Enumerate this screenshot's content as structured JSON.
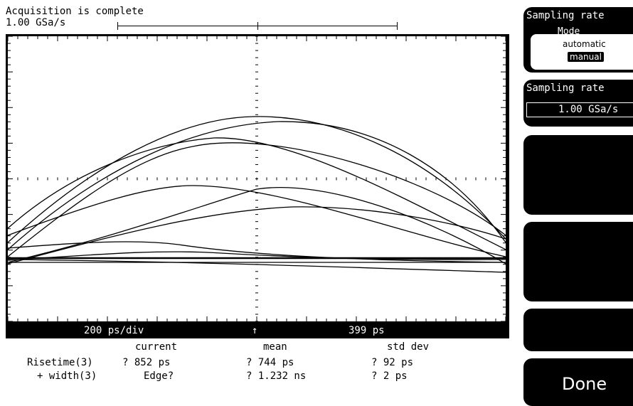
{
  "header": {
    "status": "Acquisition is complete",
    "sample_rate": "1.00 GSa/s"
  },
  "display": {
    "timebase": "200 ps/div",
    "trigger_marker": "↑",
    "delay": "399 ps"
  },
  "measurements": {
    "headers": [
      "current",
      "mean",
      "std dev"
    ],
    "rows": [
      {
        "label": "Risetime(3)",
        "current": "? 852 ps",
        "mean": "? 744 ps",
        "std_dev": "? 92 ps"
      },
      {
        "label": "+ width(3)",
        "current": "Edge?",
        "mean": "? 1.232 ns",
        "std_dev": "? 2 ps"
      }
    ]
  },
  "softkeys": {
    "sampling_rate_title": "Sampling rate",
    "mode_label": "Mode",
    "mode_options": [
      "automatic",
      "manual"
    ],
    "mode_selected": "manual",
    "rate_title": "Sampling rate",
    "rate_value": "1.00 GSa/s",
    "done_label": "Done"
  },
  "colors": {
    "foreground": "#000000",
    "background": "#ffffff"
  }
}
